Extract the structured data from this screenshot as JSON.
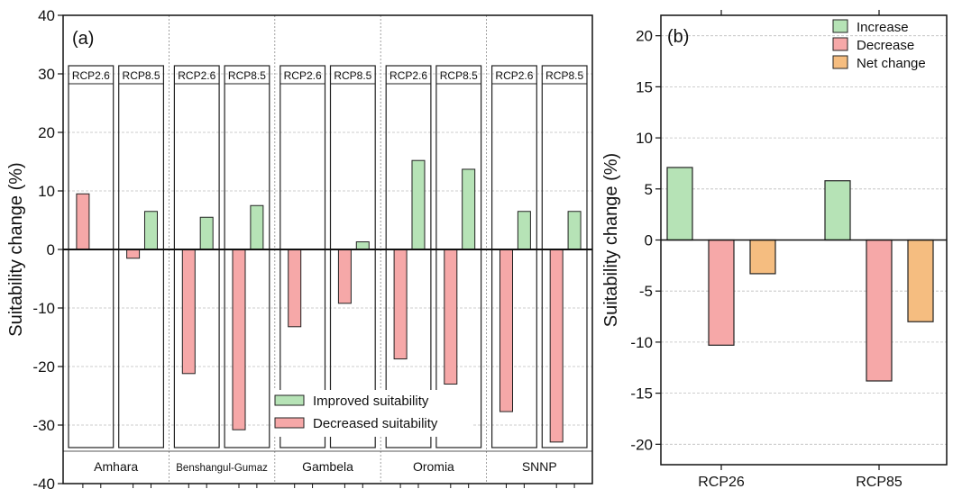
{
  "chart_data": [
    {
      "type": "bar",
      "panel_label": "(a)",
      "ylabel": "Suitability change (%)",
      "ylim": [
        -40,
        40
      ],
      "yticks": [
        -40,
        -30,
        -20,
        -10,
        0,
        10,
        20,
        30,
        40
      ],
      "regions": [
        "Amhara",
        "Benshangul-Gumaz",
        "Gambela",
        "Oromia",
        "SNNP"
      ],
      "scenarios": [
        "RCP2.6",
        "RCP8.5"
      ],
      "series": [
        {
          "name": "Improved suitability",
          "color": "#b6e3b6",
          "values": [
            [
              0,
              6.5
            ],
            [
              5.5,
              7.5
            ],
            [
              0,
              1.3
            ],
            [
              15.2,
              13.7
            ],
            [
              6.5,
              6.5
            ]
          ]
        },
        {
          "name": "Decreased suitability",
          "color": "#f6a8a8",
          "values": [
            [
              9.5,
              -1.5
            ],
            [
              -21.2,
              -30.8
            ],
            [
              -13.2,
              -9.2
            ],
            [
              -18.7,
              -23
            ],
            [
              -27.7,
              -32.9
            ]
          ]
        }
      ],
      "grid": "horizontal dashed",
      "legend_position": "bottom-right"
    },
    {
      "type": "bar",
      "panel_label": "(b)",
      "ylabel": "Suitability change (%)",
      "ylim": [
        -22,
        22
      ],
      "yticks": [
        -20,
        -15,
        -10,
        -5,
        0,
        5,
        10,
        15,
        20
      ],
      "categories": [
        "RCP26",
        "RCP85"
      ],
      "series": [
        {
          "name": "Increase",
          "color": "#b6e3b6",
          "values": [
            7.1,
            5.8
          ]
        },
        {
          "name": "Decrease",
          "color": "#f6a8a8",
          "values": [
            -10.3,
            -13.8
          ]
        },
        {
          "name": "Net change",
          "color": "#f5bd80",
          "values": [
            -3.3,
            -8.0
          ]
        }
      ],
      "grid": "horizontal dashed",
      "legend_position": "top-right"
    }
  ]
}
